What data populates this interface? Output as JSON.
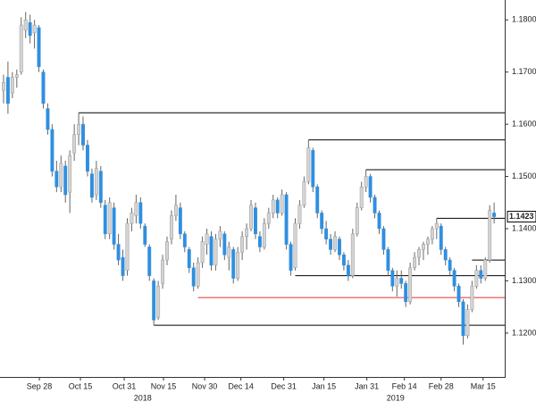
{
  "chart_data": {
    "type": "candlestick",
    "up_color": "#d4d4d4",
    "down_color": "#2f8fe0",
    "wick_color": "#666666",
    "ylim": [
      1.1116,
      1.1838
    ],
    "yticks": [
      {
        "value": 1.12,
        "label": "1.1200"
      },
      {
        "value": 1.13,
        "label": "1.1300"
      },
      {
        "value": 1.14,
        "label": "1.1400"
      },
      {
        "value": 1.15,
        "label": "1.1500"
      },
      {
        "value": 1.16,
        "label": "1.1600"
      },
      {
        "value": 1.17,
        "label": "1.1700"
      },
      {
        "value": 1.18,
        "label": "1.1800"
      }
    ],
    "xlim": [
      -0.8,
      113.4
    ],
    "xticks": [
      {
        "value": 8.1,
        "label": "Sep 28"
      },
      {
        "value": 17.4,
        "label": "Oct 15"
      },
      {
        "value": 27.3,
        "label": "Oct 31"
      },
      {
        "value": 36.2,
        "label": "Nov 15"
      },
      {
        "value": 45.5,
        "label": "Nov 30"
      },
      {
        "value": 53.7,
        "label": "Dec 14"
      },
      {
        "value": 63.4,
        "label": "Dec 31"
      },
      {
        "value": 72.5,
        "label": "Jan 15"
      },
      {
        "value": 82.2,
        "label": "Jan 31"
      },
      {
        "value": 90.7,
        "label": "Feb 14"
      },
      {
        "value": 99,
        "label": "Feb 28"
      },
      {
        "value": 108.5,
        "label": "Mar 15"
      }
    ],
    "year_labels": [
      {
        "value": 31.5,
        "label": "2018"
      },
      {
        "value": 88.7,
        "label": "2019"
      }
    ],
    "levels": [
      {
        "value": 1.1622,
        "start": 17,
        "color": "#000000"
      },
      {
        "value": 1.157,
        "start": 69,
        "color": "#000000"
      },
      {
        "value": 1.1513,
        "start": 82,
        "color": "#000000"
      },
      {
        "value": 1.142,
        "start": 98,
        "color": "#000000"
      },
      {
        "value": 1.134,
        "start": 106,
        "color": "#000000"
      },
      {
        "value": 1.131,
        "start": 66,
        "color": "#000000"
      },
      {
        "value": 1.1268,
        "start": 44,
        "color": "#e03030"
      },
      {
        "value": 1.1215,
        "start": 34,
        "color": "#000000"
      }
    ],
    "ohlc": [
      [
        1.1665,
        1.1695,
        1.164,
        1.168
      ],
      [
        1.169,
        1.172,
        1.162,
        1.164
      ],
      [
        1.166,
        1.17,
        1.165,
        1.169
      ],
      [
        1.169,
        1.1705,
        1.167,
        1.1695
      ],
      [
        1.17,
        1.1805,
        1.1695,
        1.179
      ],
      [
        1.178,
        1.1815,
        1.1765,
        1.18
      ],
      [
        1.1795,
        1.181,
        1.1755,
        1.177
      ],
      [
        1.1775,
        1.18,
        1.1745,
        1.179
      ],
      [
        1.1785,
        1.179,
        1.17,
        1.171
      ],
      [
        1.17,
        1.1705,
        1.163,
        1.164
      ],
      [
        1.163,
        1.164,
        1.158,
        1.159
      ],
      [
        1.159,
        1.16,
        1.15,
        1.151
      ],
      [
        1.151,
        1.153,
        1.147,
        1.148
      ],
      [
        1.148,
        1.154,
        1.147,
        1.1525
      ],
      [
        1.152,
        1.153,
        1.145,
        1.1465
      ],
      [
        1.147,
        1.155,
        1.143,
        1.154
      ],
      [
        1.1545,
        1.16,
        1.153,
        1.158
      ],
      [
        1.158,
        1.1622,
        1.156,
        1.16
      ],
      [
        1.16,
        1.1615,
        1.155,
        1.156
      ],
      [
        1.156,
        1.157,
        1.15,
        1.151
      ],
      [
        1.1505,
        1.1515,
        1.145,
        1.146
      ],
      [
        1.1465,
        1.153,
        1.1455,
        1.1515
      ],
      [
        1.151,
        1.152,
        1.144,
        1.145
      ],
      [
        1.1445,
        1.1455,
        1.138,
        1.139
      ],
      [
        1.139,
        1.146,
        1.138,
        1.145
      ],
      [
        1.144,
        1.145,
        1.136,
        1.137
      ],
      [
        1.137,
        1.139,
        1.133,
        1.134
      ],
      [
        1.1345,
        1.136,
        1.13,
        1.131
      ],
      [
        1.132,
        1.142,
        1.131,
        1.141
      ],
      [
        1.141,
        1.144,
        1.1395,
        1.143
      ],
      [
        1.1425,
        1.1465,
        1.141,
        1.145
      ],
      [
        1.145,
        1.146,
        1.14,
        1.141
      ],
      [
        1.1405,
        1.141,
        1.1365,
        1.137
      ],
      [
        1.1365,
        1.137,
        1.13,
        1.131
      ],
      [
        1.13,
        1.1305,
        1.1215,
        1.1225
      ],
      [
        1.123,
        1.13,
        1.1225,
        1.129
      ],
      [
        1.1295,
        1.135,
        1.1285,
        1.134
      ],
      [
        1.134,
        1.1385,
        1.133,
        1.1375
      ],
      [
        1.138,
        1.1435,
        1.137,
        1.1425
      ],
      [
        1.1425,
        1.1465,
        1.1415,
        1.1445
      ],
      [
        1.144,
        1.145,
        1.138,
        1.139
      ],
      [
        1.139,
        1.1395,
        1.1355,
        1.1365
      ],
      [
        1.136,
        1.1365,
        1.1315,
        1.1325
      ],
      [
        1.1325,
        1.1335,
        1.128,
        1.129
      ],
      [
        1.129,
        1.1345,
        1.1285,
        1.1335
      ],
      [
        1.1335,
        1.1385,
        1.1325,
        1.1375
      ],
      [
        1.137,
        1.14,
        1.135,
        1.139
      ],
      [
        1.1385,
        1.1395,
        1.132,
        1.133
      ],
      [
        1.133,
        1.139,
        1.132,
        1.138
      ],
      [
        1.138,
        1.1405,
        1.1365,
        1.1395
      ],
      [
        1.139,
        1.1395,
        1.134,
        1.135
      ],
      [
        1.1345,
        1.1375,
        1.132,
        1.1365
      ],
      [
        1.136,
        1.1365,
        1.1295,
        1.1305
      ],
      [
        1.1305,
        1.1365,
        1.13,
        1.1355
      ],
      [
        1.1355,
        1.1395,
        1.134,
        1.1385
      ],
      [
        1.1385,
        1.141,
        1.136,
        1.14
      ],
      [
        1.14,
        1.1455,
        1.1395,
        1.1445
      ],
      [
        1.144,
        1.145,
        1.138,
        1.139
      ],
      [
        1.1385,
        1.1395,
        1.1355,
        1.1365
      ],
      [
        1.1365,
        1.142,
        1.136,
        1.141
      ],
      [
        1.141,
        1.144,
        1.14,
        1.143
      ],
      [
        1.143,
        1.1465,
        1.142,
        1.1455
      ],
      [
        1.1455,
        1.146,
        1.142,
        1.143
      ],
      [
        1.143,
        1.1475,
        1.1425,
        1.1465
      ],
      [
        1.1465,
        1.147,
        1.136,
        1.137
      ],
      [
        1.137,
        1.1375,
        1.131,
        1.132
      ],
      [
        1.1325,
        1.142,
        1.132,
        1.141
      ],
      [
        1.141,
        1.1455,
        1.14,
        1.1445
      ],
      [
        1.1445,
        1.15,
        1.144,
        1.149
      ],
      [
        1.149,
        1.157,
        1.1485,
        1.1555
      ],
      [
        1.155,
        1.1555,
        1.147,
        1.148
      ],
      [
        1.148,
        1.1485,
        1.142,
        1.143
      ],
      [
        1.143,
        1.1435,
        1.139,
        1.14
      ],
      [
        1.14,
        1.1415,
        1.137,
        1.138
      ],
      [
        1.138,
        1.139,
        1.135,
        1.136
      ],
      [
        1.136,
        1.1395,
        1.1355,
        1.1385
      ],
      [
        1.138,
        1.1385,
        1.134,
        1.135
      ],
      [
        1.135,
        1.1355,
        1.132,
        1.133
      ],
      [
        1.133,
        1.134,
        1.13,
        1.131
      ],
      [
        1.131,
        1.14,
        1.1305,
        1.139
      ],
      [
        1.139,
        1.145,
        1.1385,
        1.144
      ],
      [
        1.144,
        1.149,
        1.1435,
        1.148
      ],
      [
        1.148,
        1.1513,
        1.147,
        1.15
      ],
      [
        1.15,
        1.1505,
        1.145,
        1.146
      ],
      [
        1.146,
        1.1465,
        1.142,
        1.143
      ],
      [
        1.143,
        1.1435,
        1.139,
        1.14
      ],
      [
        1.14,
        1.1405,
        1.135,
        1.136
      ],
      [
        1.136,
        1.1365,
        1.131,
        1.132
      ],
      [
        1.132,
        1.1325,
        1.128,
        1.129
      ],
      [
        1.129,
        1.132,
        1.127,
        1.1305
      ],
      [
        1.1305,
        1.132,
        1.1285,
        1.1295
      ],
      [
        1.1295,
        1.13,
        1.125,
        1.126
      ],
      [
        1.126,
        1.1335,
        1.1255,
        1.1325
      ],
      [
        1.1325,
        1.1355,
        1.132,
        1.1345
      ],
      [
        1.1345,
        1.1365,
        1.133,
        1.136
      ],
      [
        1.136,
        1.1375,
        1.134,
        1.137
      ],
      [
        1.137,
        1.1385,
        1.135,
        1.138
      ],
      [
        1.138,
        1.1405,
        1.137,
        1.14
      ],
      [
        1.14,
        1.142,
        1.138,
        1.141
      ],
      [
        1.1405,
        1.141,
        1.135,
        1.136
      ],
      [
        1.136,
        1.1365,
        1.133,
        1.134
      ],
      [
        1.134,
        1.1345,
        1.131,
        1.132
      ],
      [
        1.132,
        1.1325,
        1.128,
        1.129
      ],
      [
        1.129,
        1.1295,
        1.125,
        1.126
      ],
      [
        1.126,
        1.1265,
        1.1178,
        1.1195
      ],
      [
        1.1195,
        1.1255,
        1.119,
        1.1245
      ],
      [
        1.1245,
        1.13,
        1.124,
        1.129
      ],
      [
        1.129,
        1.133,
        1.1285,
        1.132
      ],
      [
        1.132,
        1.133,
        1.1295,
        1.1305
      ],
      [
        1.1305,
        1.1345,
        1.13,
        1.134
      ],
      [
        1.134,
        1.1445,
        1.1335,
        1.1435
      ],
      [
        1.143,
        1.145,
        1.141,
        1.1423
      ]
    ]
  }
}
